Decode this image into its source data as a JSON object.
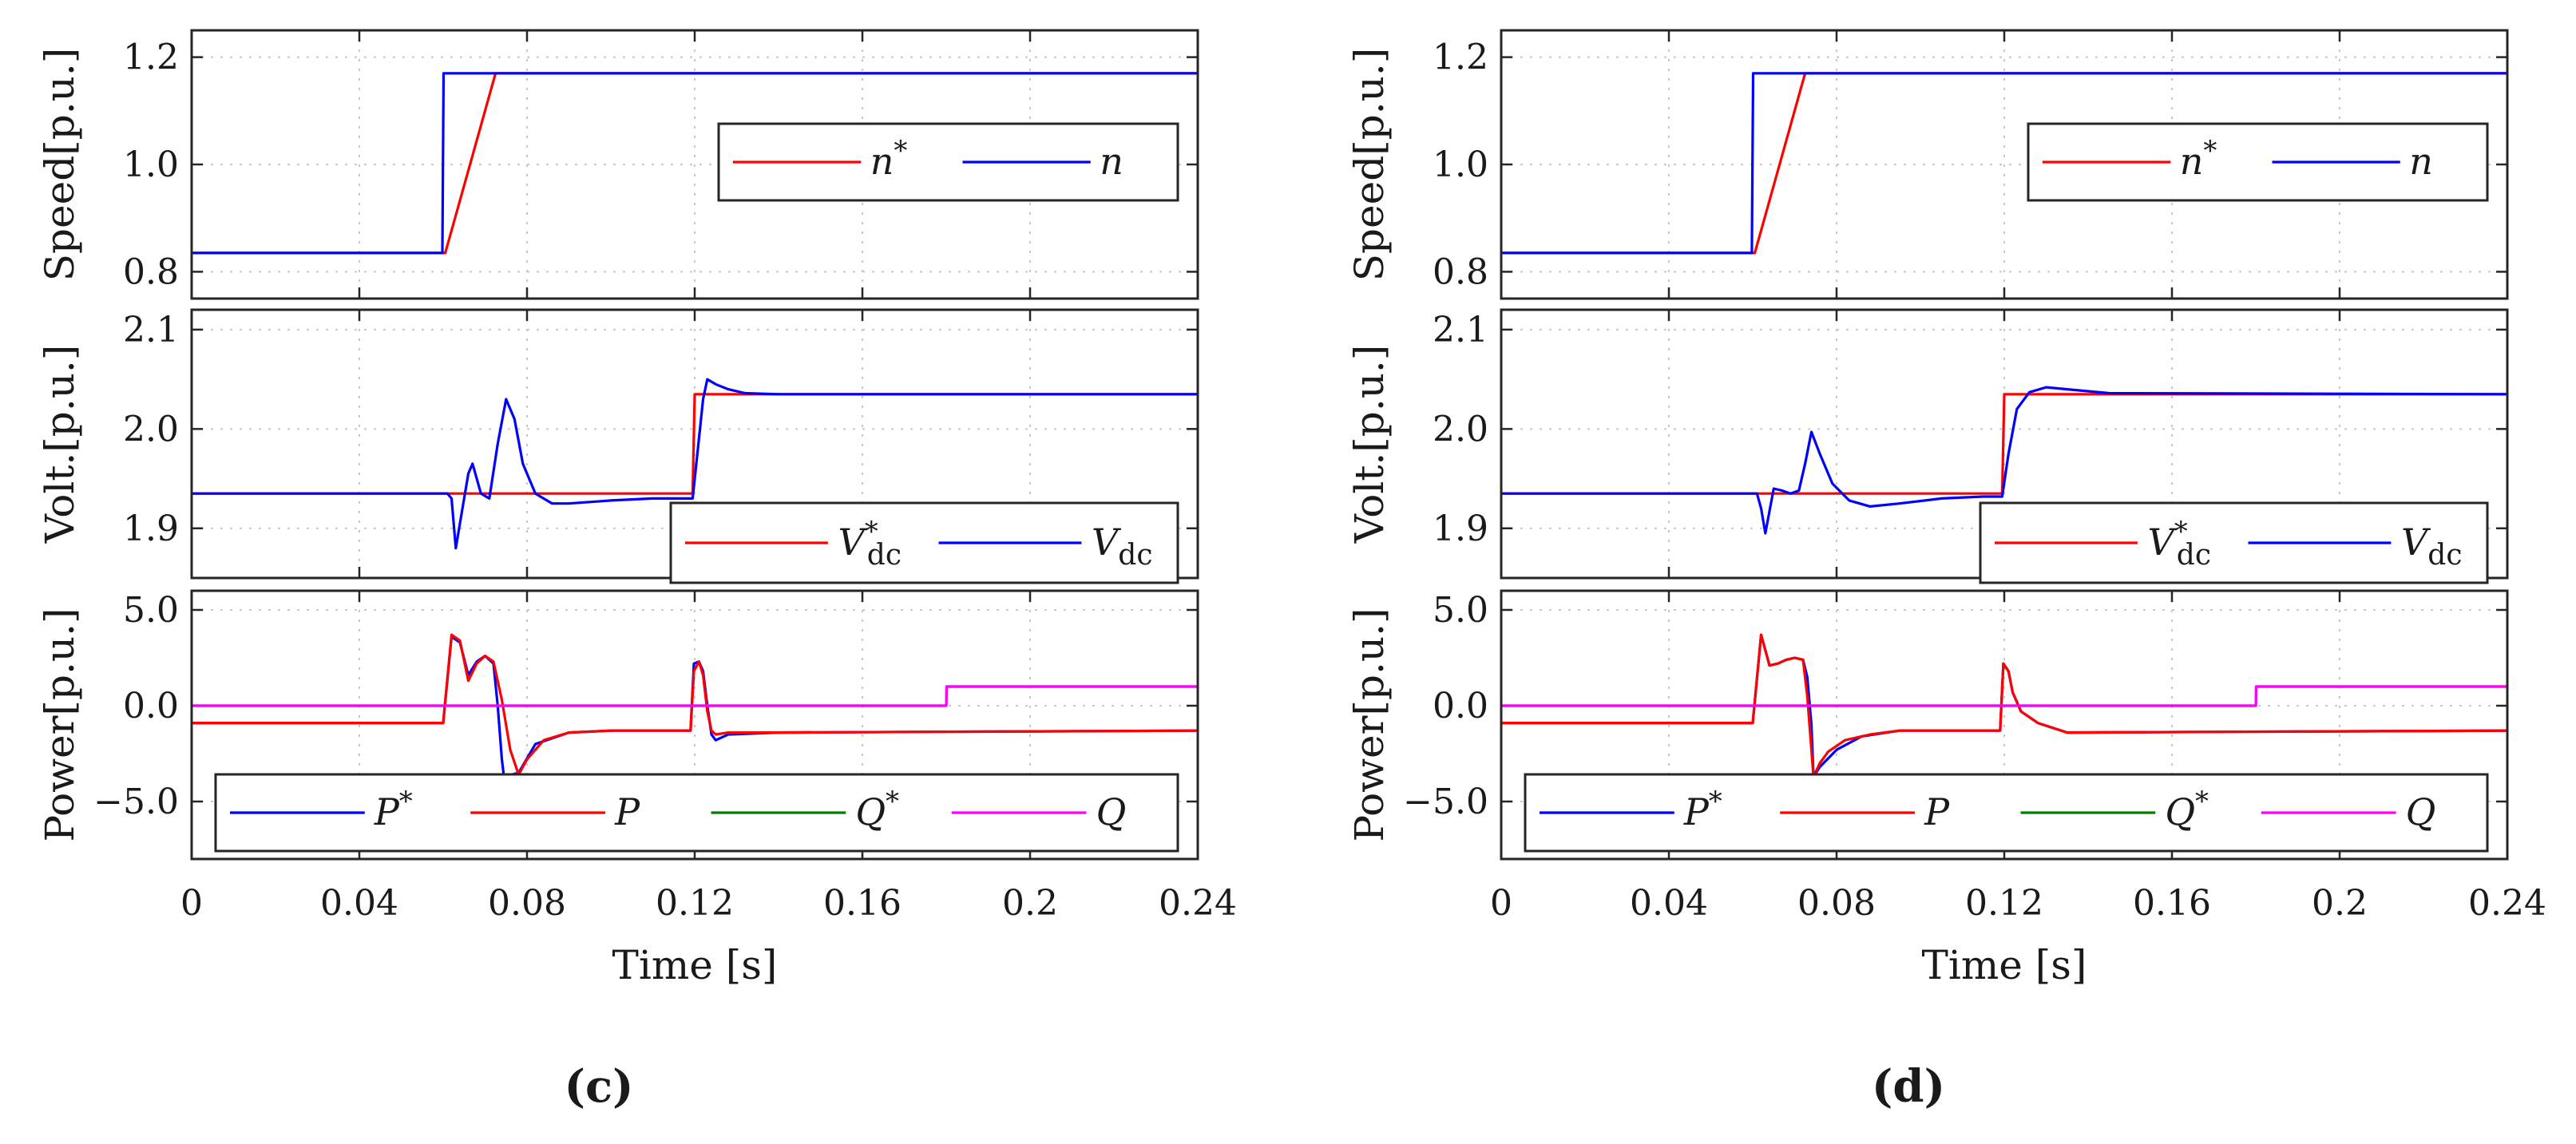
{
  "chart_data": [
    {
      "type": "line",
      "panel_label": "(c)",
      "xlabel": "Time [s]",
      "xlim": [
        0,
        0.24
      ],
      "xticks": [
        "0",
        "0.04",
        "0.08",
        "0.12",
        "0.16",
        "0.2",
        "0.24"
      ],
      "subplots": [
        {
          "ylabel": "Speed[p.u.]",
          "ylim": [
            0.75,
            1.25
          ],
          "yticks": [
            "0.8",
            "1.0",
            "1.2"
          ],
          "legend": [
            "n*",
            "n"
          ],
          "series": [
            {
              "name": "n*",
              "color": "#ff0000",
              "x": [
                0,
                0.0605,
                0.0725,
                0.24
              ],
              "y": [
                0.835,
                0.835,
                1.17,
                1.17
              ]
            },
            {
              "name": "n",
              "color": "#0000ff",
              "x": [
                0,
                0.0598,
                0.0601,
                0.24
              ],
              "y": [
                0.835,
                0.835,
                1.17,
                1.17
              ]
            }
          ]
        },
        {
          "ylabel": "Volt.[p.u.]",
          "ylim": [
            1.85,
            2.12
          ],
          "yticks": [
            "1.9",
            "2.0",
            "2.1"
          ],
          "legend": [
            "V*dc",
            "Vdc"
          ],
          "series": [
            {
              "name": "V*dc",
              "color": "#ff0000",
              "x": [
                0,
                0.1195,
                0.12,
                0.24
              ],
              "y": [
                1.935,
                1.935,
                2.035,
                2.035
              ]
            },
            {
              "name": "Vdc",
              "color": "#0000ff",
              "x": [
                0,
                0.061,
                0.062,
                0.063,
                0.064,
                0.066,
                0.067,
                0.069,
                0.071,
                0.073,
                0.075,
                0.077,
                0.079,
                0.082,
                0.086,
                0.09,
                0.1,
                0.11,
                0.1195,
                0.121,
                0.122,
                0.123,
                0.125,
                0.128,
                0.132,
                0.14,
                0.24
              ],
              "y": [
                1.935,
                1.935,
                1.93,
                1.88,
                1.905,
                1.955,
                1.965,
                1.935,
                1.93,
                1.985,
                2.03,
                2.01,
                1.965,
                1.935,
                1.925,
                1.925,
                1.928,
                1.93,
                1.93,
                1.99,
                2.03,
                2.05,
                2.045,
                2.04,
                2.036,
                2.035,
                2.035
              ]
            }
          ]
        },
        {
          "ylabel": "Power[p.u.]",
          "ylim": [
            -8,
            6
          ],
          "yticks": [
            "−5.0",
            "0.0",
            "5.0"
          ],
          "legend": [
            "P*",
            "P",
            "Q*",
            "Q"
          ],
          "series": [
            {
              "name": "P*",
              "color": "#0000ff",
              "x": [
                0,
                0.06,
                0.062,
                0.064,
                0.066,
                0.068,
                0.07,
                0.072,
                0.073,
                0.074,
                0.0745,
                0.078,
                0.082,
                0.09,
                0.1,
                0.11,
                0.119,
                0.1198,
                0.121,
                0.122,
                0.123,
                0.124,
                0.125,
                0.128,
                0.14,
                0.24
              ],
              "y": [
                -0.9,
                -0.9,
                3.6,
                3.3,
                1.6,
                2.3,
                2.6,
                2.2,
                0,
                -2.8,
                -3.7,
                -3.5,
                -2.0,
                -1.4,
                -1.3,
                -1.3,
                -1.3,
                2.2,
                2.3,
                1.8,
                0,
                -1.5,
                -1.8,
                -1.5,
                -1.4,
                -1.3
              ]
            },
            {
              "name": "P",
              "color": "#ff0000",
              "x": [
                0,
                0.06,
                0.062,
                0.064,
                0.066,
                0.068,
                0.07,
                0.072,
                0.074,
                0.076,
                0.078,
                0.08,
                0.084,
                0.09,
                0.1,
                0.11,
                0.119,
                0.1198,
                0.121,
                0.122,
                0.123,
                0.124,
                0.125,
                0.128,
                0.14,
                0.24
              ],
              "y": [
                -0.9,
                -0.9,
                3.7,
                3.4,
                1.3,
                2.2,
                2.6,
                2.3,
                0.3,
                -2.3,
                -3.6,
                -2.8,
                -1.8,
                -1.4,
                -1.3,
                -1.3,
                -1.3,
                1.8,
                2.3,
                1.6,
                -0.3,
                -1.3,
                -1.5,
                -1.4,
                -1.4,
                -1.3
              ]
            },
            {
              "name": "Q*",
              "color": "#008000",
              "x": [
                0,
                0.18,
                0.1801,
                0.24
              ],
              "y": [
                0,
                0,
                1.0,
                1.0
              ]
            },
            {
              "name": "Q",
              "color": "#ff00ff",
              "x": [
                0,
                0.18,
                0.1801,
                0.24
              ],
              "y": [
                0,
                0,
                1.0,
                1.0
              ]
            }
          ]
        }
      ]
    },
    {
      "type": "line",
      "panel_label": "(d)",
      "xlabel": "Time [s]",
      "xlim": [
        0,
        0.24
      ],
      "xticks": [
        "0",
        "0.04",
        "0.08",
        "0.12",
        "0.16",
        "0.2",
        "0.24"
      ],
      "subplots": [
        {
          "ylabel": "Speed[p.u.]",
          "ylim": [
            0.75,
            1.25
          ],
          "yticks": [
            "0.8",
            "1.0",
            "1.2"
          ],
          "legend": [
            "n*",
            "n"
          ],
          "series": [
            {
              "name": "n*",
              "color": "#ff0000",
              "x": [
                0,
                0.0605,
                0.0725,
                0.24
              ],
              "y": [
                0.835,
                0.835,
                1.17,
                1.17
              ]
            },
            {
              "name": "n",
              "color": "#0000ff",
              "x": [
                0,
                0.0598,
                0.0601,
                0.24
              ],
              "y": [
                0.835,
                0.835,
                1.17,
                1.17
              ]
            }
          ]
        },
        {
          "ylabel": "Volt.[p.u.]",
          "ylim": [
            1.85,
            2.12
          ],
          "yticks": [
            "1.9",
            "2.0",
            "2.1"
          ],
          "legend": [
            "V*dc",
            "Vdc"
          ],
          "series": [
            {
              "name": "V*dc",
              "color": "#ff0000",
              "x": [
                0,
                0.1195,
                0.12,
                0.24
              ],
              "y": [
                1.935,
                1.935,
                2.035,
                2.035
              ]
            },
            {
              "name": "Vdc",
              "color": "#0000ff",
              "x": [
                0,
                0.061,
                0.062,
                0.063,
                0.065,
                0.067,
                0.069,
                0.071,
                0.0725,
                0.074,
                0.076,
                0.079,
                0.083,
                0.088,
                0.095,
                0.105,
                0.115,
                0.1195,
                0.121,
                0.123,
                0.126,
                0.13,
                0.135,
                0.145,
                0.24
              ],
              "y": [
                1.935,
                1.935,
                1.92,
                1.895,
                1.94,
                1.938,
                1.935,
                1.938,
                1.965,
                1.997,
                1.975,
                1.945,
                1.928,
                1.922,
                1.925,
                1.93,
                1.932,
                1.932,
                1.975,
                2.02,
                2.037,
                2.042,
                2.04,
                2.036,
                2.035
              ]
            }
          ]
        },
        {
          "ylabel": "Power[p.u.]",
          "ylim": [
            -8,
            6
          ],
          "yticks": [
            "−5.0",
            "0.0",
            "5.0"
          ],
          "legend": [
            "P*",
            "P",
            "Q*",
            "Q"
          ],
          "series": [
            {
              "name": "P*",
              "color": "#0000ff",
              "x": [
                0,
                0.06,
                0.062,
                0.064,
                0.066,
                0.068,
                0.07,
                0.072,
                0.073,
                0.074,
                0.0745,
                0.076,
                0.08,
                0.086,
                0.095,
                0.11,
                0.119,
                0.1198,
                0.121,
                0.122,
                0.124,
                0.128,
                0.135,
                0.24
              ],
              "y": [
                -0.9,
                -0.9,
                3.7,
                2.1,
                2.2,
                2.4,
                2.5,
                2.4,
                1.5,
                -1.0,
                -3.7,
                -3.2,
                -2.3,
                -1.6,
                -1.3,
                -1.3,
                -1.3,
                2.2,
                1.8,
                0.7,
                -0.3,
                -0.9,
                -1.4,
                -1.3
              ]
            },
            {
              "name": "P",
              "color": "#ff0000",
              "x": [
                0,
                0.06,
                0.062,
                0.064,
                0.066,
                0.068,
                0.07,
                0.072,
                0.073,
                0.0745,
                0.076,
                0.078,
                0.082,
                0.088,
                0.095,
                0.11,
                0.119,
                0.1198,
                0.121,
                0.122,
                0.124,
                0.128,
                0.135,
                0.24
              ],
              "y": [
                -0.9,
                -0.9,
                3.7,
                2.1,
                2.2,
                2.4,
                2.5,
                2.4,
                0.5,
                -3.7,
                -3.0,
                -2.4,
                -1.8,
                -1.5,
                -1.3,
                -1.3,
                -1.3,
                2.2,
                1.8,
                0.7,
                -0.3,
                -0.9,
                -1.4,
                -1.3
              ]
            },
            {
              "name": "Q*",
              "color": "#008000",
              "x": [
                0,
                0.18,
                0.1801,
                0.24
              ],
              "y": [
                0,
                0,
                1.0,
                1.0
              ]
            },
            {
              "name": "Q",
              "color": "#ff00ff",
              "x": [
                0,
                0.18,
                0.1801,
                0.24
              ],
              "y": [
                0,
                0,
                1.0,
                1.0
              ]
            }
          ]
        }
      ]
    }
  ]
}
